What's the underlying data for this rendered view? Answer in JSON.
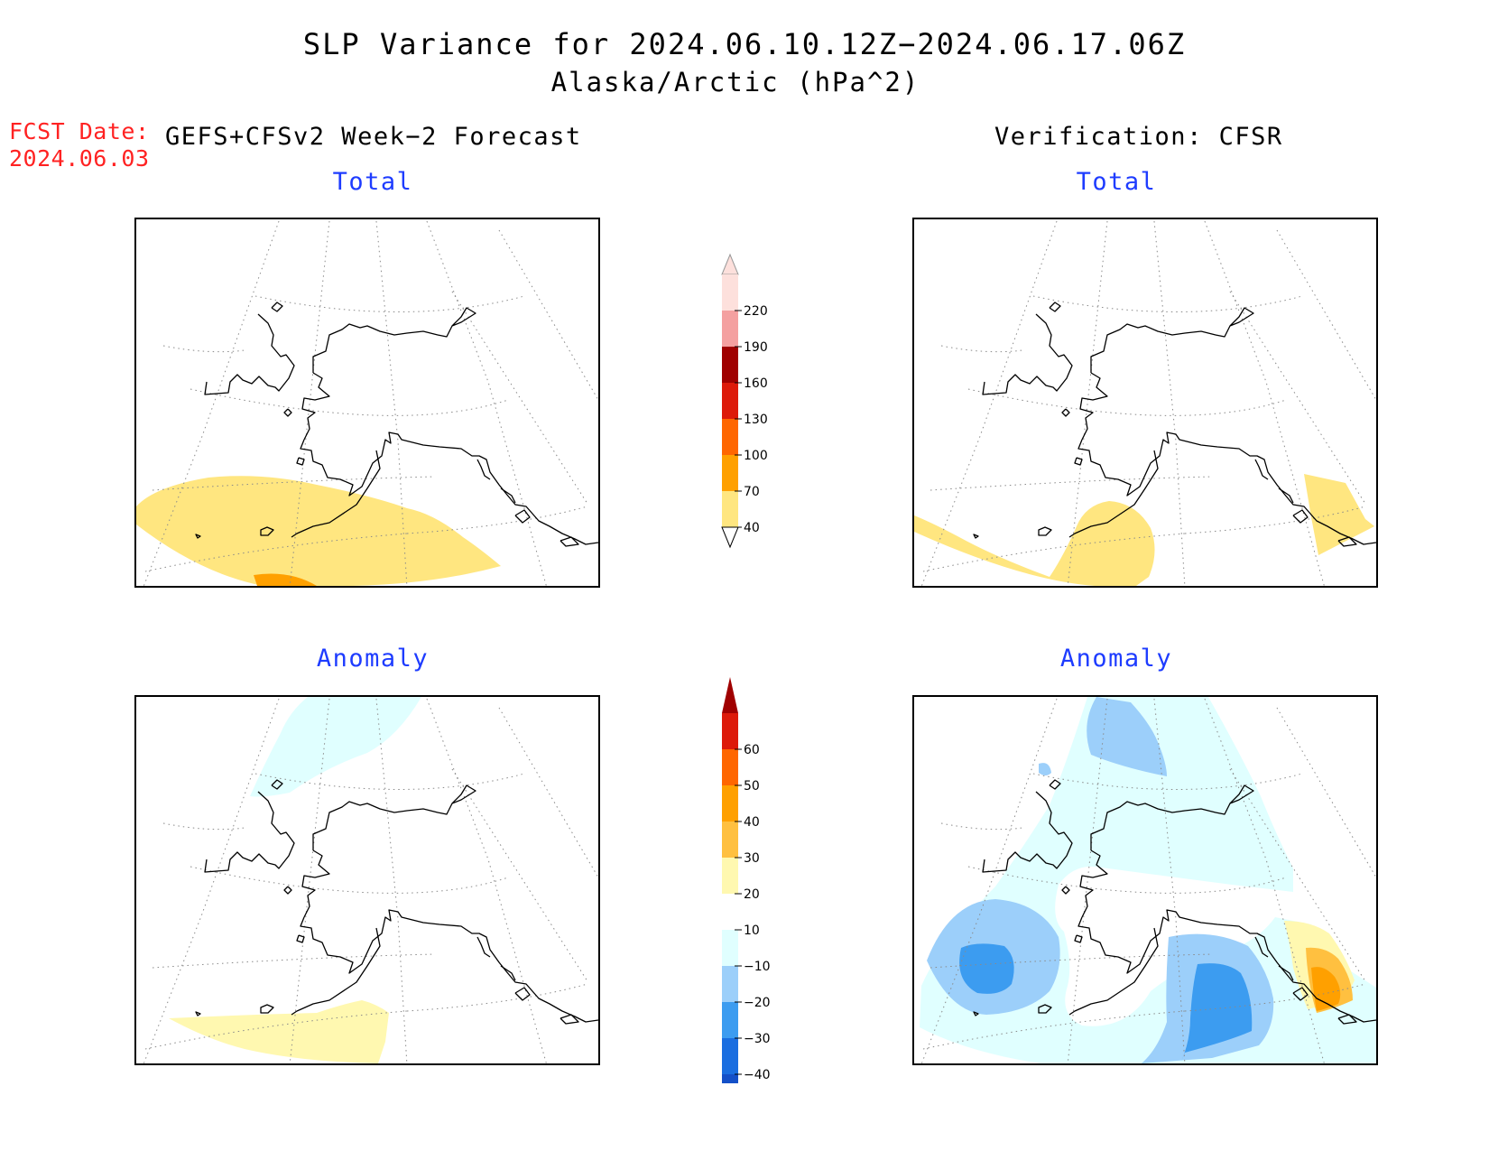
{
  "title": "SLP Variance for 2024.06.10.12Z−2024.06.17.06Z",
  "subtitle": "Alaska/Arctic (hPa^2)",
  "fcst_label": "FCST Date:",
  "fcst_date": "2024.06.03",
  "left_header": "GEFS+CFSv2 Week−2 Forecast",
  "right_header": "Verification: CFSR",
  "panels": {
    "top_left": {
      "label": "Total"
    },
    "top_right": {
      "label": "Total"
    },
    "bottom_left": {
      "label": "Anomaly"
    },
    "bottom_right": {
      "label": "Anomaly"
    }
  },
  "colorbar_total": {
    "ticks": [
      "220",
      "190",
      "160",
      "130",
      "100",
      "70",
      "40"
    ],
    "colors": [
      "#fde0dc",
      "#f4a0a0",
      "#a00000",
      "#dd1a0a",
      "#ff6600",
      "#ffa000",
      "#ffe680"
    ]
  },
  "colorbar_anomaly": {
    "ticks": [
      "60",
      "50",
      "40",
      "30",
      "20",
      "10",
      "−10",
      "−20",
      "−30",
      "−40"
    ],
    "colors": [
      "#a00000",
      "#dd1a0a",
      "#ff6600",
      "#ffa000",
      "#ffc040",
      "#fff8b0",
      "#ffffff",
      "#e0ffff",
      "#9ccffa",
      "#3c9cf0",
      "#1a6ee0",
      "#1450c8"
    ]
  },
  "fill_colors": {
    "y40": "#ffe680",
    "y70": "#ffa000",
    "a10": "#fff8b0",
    "a20": "#ffc040",
    "a30": "#ffa000",
    "n10": "#e0ffff",
    "n20": "#9ccffa",
    "n30": "#3c9cf0",
    "n40": "#1a6ee0"
  }
}
